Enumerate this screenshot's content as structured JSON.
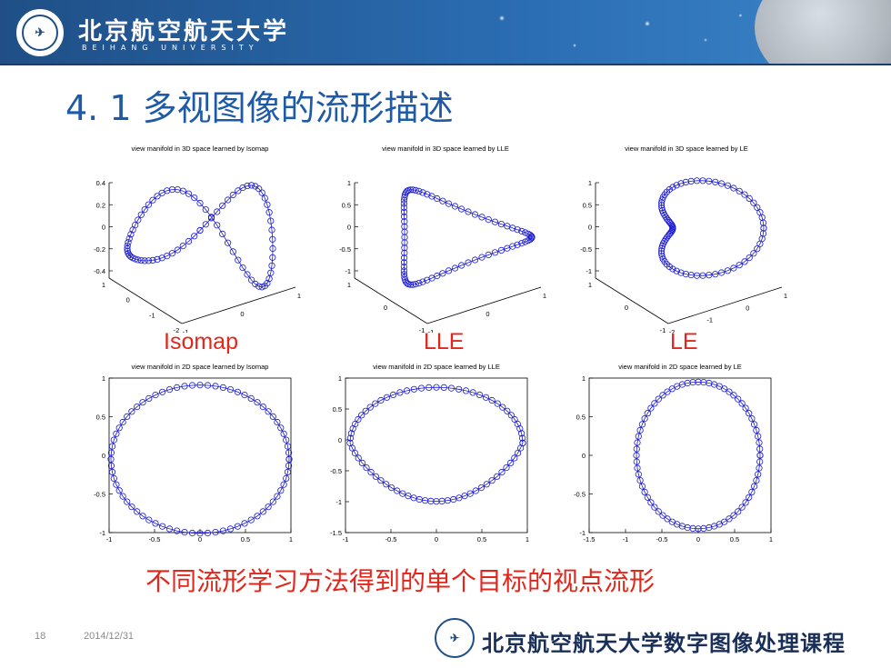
{
  "header": {
    "university_name": "北京航空航天大学",
    "university_en": "BEIHANG UNIVERSITY",
    "brand_color": "#1f4f86"
  },
  "slide": {
    "title": "4. 1  多视图像的流形描述",
    "caption": "不同流形学习方法得到的单个目标的视点流形",
    "method_labels": [
      "Isomap",
      "LLE",
      "LE"
    ]
  },
  "footer": {
    "page_number": "18",
    "date": "2014/12/31",
    "course_title": "北京航空航天大学数字图像处理课程"
  },
  "chart_data": [
    {
      "type": "scatter",
      "title": "view manifold in 3D space learned by Isomap",
      "ztick_labels": [
        "0.4",
        "0.2",
        "0",
        "-0.2",
        "-0.4"
      ],
      "xtick_labels": [
        "1",
        "0",
        "-1",
        "-2"
      ],
      "ytick_labels": [
        "-1",
        "0",
        "1"
      ]
    },
    {
      "type": "scatter",
      "title": "view manifold in 3D space learned by LLE",
      "ztick_labels": [
        "1",
        "0.5",
        "0",
        "-0.5",
        "-1"
      ],
      "xtick_labels": [
        "1",
        "0",
        "-1"
      ],
      "ytick_labels": [
        "-1",
        "0",
        "1"
      ]
    },
    {
      "type": "scatter",
      "title": "view manifold in 3D space learned by LE",
      "ztick_labels": [
        "1",
        "0.5",
        "0",
        "-0.5",
        "-1"
      ],
      "xtick_labels": [
        "1",
        "0",
        "-1"
      ],
      "ytick_labels": [
        "-2",
        "-1",
        "0",
        "1"
      ]
    },
    {
      "type": "scatter",
      "title": "view manifold in 2D space learned by Isomap",
      "xlim": [
        -1,
        1
      ],
      "ylim": [
        -1,
        1
      ],
      "xticks": [
        -1,
        -0.5,
        0,
        0.5,
        1
      ],
      "yticks": [
        -1,
        -0.5,
        0,
        0.5,
        1
      ],
      "xtick_labels": [
        "-1",
        "-0.5",
        "0",
        "0.5",
        "1"
      ],
      "ytick_labels": [
        "-1",
        "-0.5",
        "0",
        "0.5",
        "1"
      ],
      "x_center": 0,
      "y_center": -0.05,
      "x_radius": 0.98,
      "y_radius": 0.96
    },
    {
      "type": "scatter",
      "title": "view manifold in 2D space learned by LLE",
      "xlim": [
        -1,
        1
      ],
      "ylim": [
        -1.5,
        1
      ],
      "xticks": [
        -1,
        -0.5,
        0,
        0.5,
        1
      ],
      "yticks": [
        -1.5,
        -1,
        -0.5,
        0,
        0.5,
        1
      ],
      "xtick_labels": [
        "-1",
        "-0.5",
        "0",
        "0.5",
        "1"
      ],
      "ytick_labels": [
        "-1.5",
        "-1",
        "-0.5",
        "0",
        "0.5",
        "1"
      ],
      "x_center": 0,
      "y_center": -0.05,
      "x_radius": 0.95,
      "y_radius": 0.9
    },
    {
      "type": "scatter",
      "title": "view manifold in 2D space learned by LE",
      "xlim": [
        -1.5,
        1
      ],
      "ylim": [
        -1,
        1
      ],
      "xticks": [
        -1.5,
        -1,
        -0.5,
        0,
        0.5,
        1
      ],
      "yticks": [
        -1,
        -0.5,
        0,
        0.5,
        1
      ],
      "xtick_labels": [
        "-1.5",
        "-1",
        "-0.5",
        "0",
        "0.5",
        "1"
      ],
      "ytick_labels": [
        "-1",
        "-0.5",
        "0",
        "0.5",
        "1"
      ],
      "x_center": 0,
      "y_center": 0,
      "x_radius": 0.85,
      "y_radius": 0.95
    }
  ],
  "plot_color": "#1a1ad0"
}
